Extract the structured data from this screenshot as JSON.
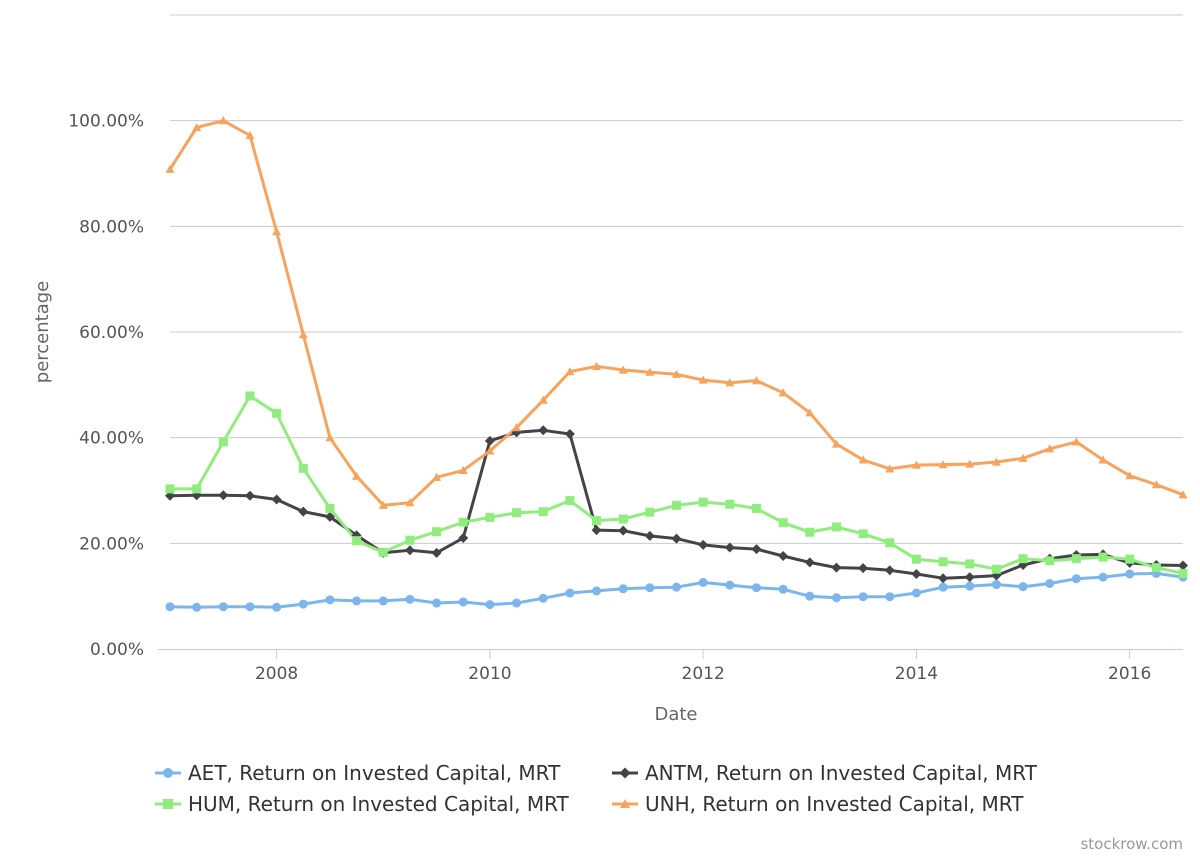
{
  "chart_data": {
    "type": "line",
    "xlabel": "Date",
    "ylabel": "percentage",
    "x_ticks": [
      "2008",
      "2010",
      "2012",
      "2014",
      "2016"
    ],
    "y_ticks": [
      "0.00%",
      "20.00%",
      "40.00%",
      "60.00%",
      "80.00%",
      "100.00%"
    ],
    "ylim": [
      0,
      120
    ],
    "xlim": [
      "2007-01",
      "2016-07"
    ],
    "grid": "horizontal",
    "legend_position": "bottom",
    "x": [
      "2007-01",
      "2007-04",
      "2007-07",
      "2007-10",
      "2008-01",
      "2008-04",
      "2008-07",
      "2008-10",
      "2009-01",
      "2009-04",
      "2009-07",
      "2009-10",
      "2010-01",
      "2010-04",
      "2010-07",
      "2010-10",
      "2011-01",
      "2011-04",
      "2011-07",
      "2011-10",
      "2012-01",
      "2012-04",
      "2012-07",
      "2012-10",
      "2013-01",
      "2013-04",
      "2013-07",
      "2013-10",
      "2014-01",
      "2014-04",
      "2014-07",
      "2014-10",
      "2015-01",
      "2015-04",
      "2015-07",
      "2015-10",
      "2016-01",
      "2016-04",
      "2016-07"
    ],
    "series": [
      {
        "name": "AET, Return on Invested Capital, MRT",
        "color": "#7cb5ec",
        "marker": "circle",
        "values": [
          8.0,
          7.9,
          8.0,
          8.0,
          7.9,
          8.5,
          9.3,
          9.1,
          9.1,
          9.4,
          8.7,
          8.9,
          8.4,
          8.7,
          9.6,
          10.6,
          11.0,
          11.4,
          11.6,
          11.7,
          12.6,
          12.1,
          11.6,
          11.3,
          10.0,
          9.7,
          9.9,
          9.9,
          10.6,
          11.7,
          11.9,
          12.2,
          11.8,
          12.4,
          13.3,
          13.6,
          14.2,
          14.3,
          13.6
        ]
      },
      {
        "name": "ANTM, Return on Invested Capital, MRT",
        "color": "#434348",
        "marker": "diamond",
        "values": [
          29.0,
          29.1,
          29.1,
          29.0,
          28.3,
          26.0,
          25.0,
          21.5,
          18.2,
          18.7,
          18.2,
          21.0,
          39.4,
          41.0,
          41.4,
          40.7,
          22.5,
          22.4,
          21.4,
          20.9,
          19.7,
          19.2,
          18.9,
          17.6,
          16.4,
          15.4,
          15.3,
          14.9,
          14.2,
          13.4,
          13.6,
          13.9,
          15.9,
          17.1,
          17.8,
          17.9,
          16.3,
          15.9,
          15.8
        ]
      },
      {
        "name": "HUM, Return on Invested Capital, MRT",
        "color": "#90ed7d",
        "marker": "square",
        "values": [
          30.3,
          30.3,
          39.2,
          47.9,
          44.6,
          34.2,
          26.6,
          20.5,
          18.3,
          20.6,
          22.2,
          24.0,
          24.9,
          25.8,
          26.0,
          28.1,
          24.3,
          24.6,
          25.9,
          27.2,
          27.8,
          27.4,
          26.6,
          23.9,
          22.1,
          23.1,
          21.8,
          20.1,
          17.0,
          16.5,
          16.1,
          15.1,
          17.1,
          16.7,
          17.1,
          17.4,
          17.0,
          15.4,
          14.3
        ]
      },
      {
        "name": "UNH, Return on Invested Capital, MRT",
        "color": "#f7a35c",
        "marker": "triangle",
        "values": [
          90.8,
          98.7,
          100.0,
          97.2,
          79.0,
          59.5,
          40.0,
          32.7,
          27.2,
          27.7,
          32.5,
          33.8,
          37.5,
          41.9,
          47.1,
          52.5,
          53.5,
          52.8,
          52.4,
          52.0,
          50.9,
          50.4,
          50.8,
          48.5,
          44.7,
          38.8,
          35.8,
          34.1,
          34.8,
          34.9,
          35.0,
          35.4,
          36.1,
          37.9,
          39.2,
          35.8,
          32.8,
          31.1,
          29.2
        ]
      }
    ]
  },
  "credit": "stockrow.com"
}
